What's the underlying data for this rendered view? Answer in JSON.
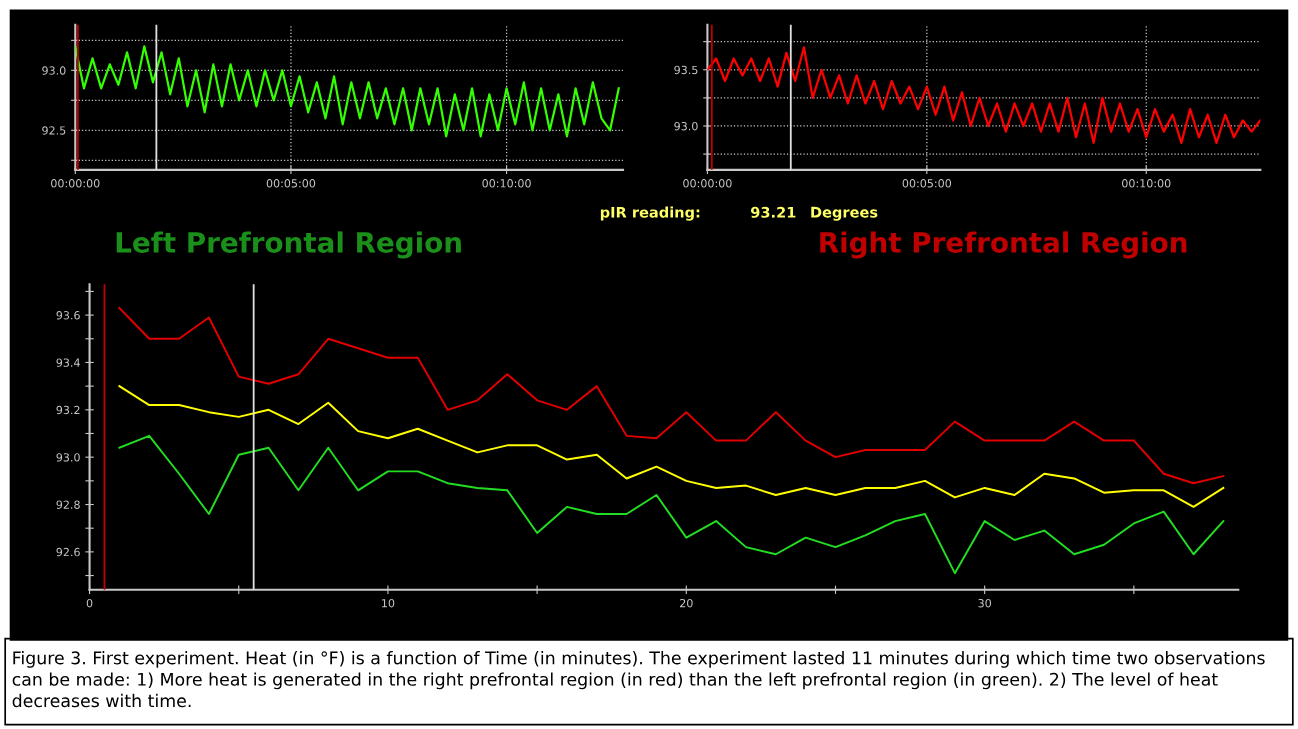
{
  "chart_data": [
    {
      "type": "line",
      "xlim": [
        0,
        12.7
      ],
      "ylim": [
        92.17,
        93.38
      ],
      "xticks": [
        {
          "value": 0,
          "label": "00:00:00"
        },
        {
          "value": 5,
          "label": "00:05:00"
        },
        {
          "value": 10,
          "label": "00:10:00"
        }
      ],
      "yticks": [
        {
          "value": 92.25,
          "label": null
        },
        {
          "value": 92.5,
          "label": "92.5"
        },
        {
          "value": 92.75,
          "label": null
        },
        {
          "value": 93.0,
          "label": "93.0"
        },
        {
          "value": 93.25,
          "label": null
        }
      ],
      "grid": true,
      "series": [
        {
          "color": "#33ff00",
          "x": [
            0,
            0.2,
            0.4,
            0.6,
            0.8,
            1.0,
            1.2,
            1.4,
            1.6,
            1.8,
            2.0,
            2.2,
            2.4,
            2.6,
            2.8,
            3.0,
            3.2,
            3.4,
            3.6,
            3.8,
            4.0,
            4.2,
            4.4,
            4.6,
            4.8,
            5.0,
            5.2,
            5.4,
            5.6,
            5.8,
            6.0,
            6.2,
            6.4,
            6.6,
            6.8,
            7.0,
            7.2,
            7.4,
            7.6,
            7.8,
            8.0,
            8.2,
            8.4,
            8.6,
            8.8,
            9.0,
            9.2,
            9.4,
            9.6,
            9.8,
            10.0,
            10.2,
            10.4,
            10.6,
            10.8,
            11.0,
            11.2,
            11.4,
            11.6,
            11.8,
            12.0,
            12.2,
            12.4,
            12.6
          ],
          "values": [
            93.2,
            92.85,
            93.1,
            92.85,
            93.05,
            92.88,
            93.15,
            92.85,
            93.2,
            92.9,
            93.15,
            92.8,
            93.1,
            92.7,
            93.0,
            92.65,
            93.05,
            92.7,
            93.05,
            92.75,
            93.0,
            92.7,
            93.0,
            92.75,
            93.0,
            92.7,
            92.95,
            92.65,
            92.9,
            92.6,
            92.95,
            92.55,
            92.9,
            92.6,
            92.9,
            92.6,
            92.85,
            92.55,
            92.85,
            92.5,
            92.85,
            92.55,
            92.85,
            92.45,
            92.8,
            92.5,
            92.85,
            92.45,
            92.8,
            92.5,
            92.85,
            92.55,
            92.9,
            92.5,
            92.85,
            92.5,
            92.8,
            92.45,
            92.85,
            92.55,
            92.9,
            92.6,
            92.5,
            92.85
          ]
        }
      ],
      "ref_lines": [
        {
          "axis": "x",
          "value": 0.06,
          "color": "#c00000"
        },
        {
          "axis": "x",
          "value": 1.88,
          "color": "#e0e0e0"
        }
      ]
    },
    {
      "type": "line",
      "xlim": [
        0,
        12.6
      ],
      "ylim": [
        92.61,
        93.9
      ],
      "xticks": [
        {
          "value": 0,
          "label": "00:00:00"
        },
        {
          "value": 5,
          "label": "00:05:00"
        },
        {
          "value": 10,
          "label": "00:10:00"
        }
      ],
      "yticks": [
        {
          "value": 92.75,
          "label": null
        },
        {
          "value": 93.0,
          "label": "93.0"
        },
        {
          "value": 93.25,
          "label": null
        },
        {
          "value": 93.5,
          "label": "93.5"
        },
        {
          "value": 93.75,
          "label": null
        }
      ],
      "grid": true,
      "series": [
        {
          "color": "#ff0000",
          "x": [
            0,
            0.2,
            0.4,
            0.6,
            0.8,
            1.0,
            1.2,
            1.4,
            1.6,
            1.8,
            2.0,
            2.2,
            2.4,
            2.6,
            2.8,
            3.0,
            3.2,
            3.4,
            3.6,
            3.8,
            4.0,
            4.2,
            4.4,
            4.6,
            4.8,
            5.0,
            5.2,
            5.4,
            5.6,
            5.8,
            6.0,
            6.2,
            6.4,
            6.6,
            6.8,
            7.0,
            7.2,
            7.4,
            7.6,
            7.8,
            8.0,
            8.2,
            8.4,
            8.6,
            8.8,
            9.0,
            9.2,
            9.4,
            9.6,
            9.8,
            10.0,
            10.2,
            10.4,
            10.6,
            10.8,
            11.0,
            11.2,
            11.4,
            11.6,
            11.8,
            12.0,
            12.2,
            12.4,
            12.6
          ],
          "values": [
            93.5,
            93.6,
            93.4,
            93.6,
            93.45,
            93.6,
            93.4,
            93.6,
            93.35,
            93.65,
            93.4,
            93.7,
            93.25,
            93.5,
            93.25,
            93.45,
            93.2,
            93.45,
            93.2,
            93.4,
            93.15,
            93.4,
            93.2,
            93.35,
            93.15,
            93.35,
            93.1,
            93.35,
            93.05,
            93.3,
            93.0,
            93.25,
            93.0,
            93.2,
            92.95,
            93.2,
            93.0,
            93.2,
            92.95,
            93.2,
            92.95,
            93.25,
            92.9,
            93.2,
            92.85,
            93.25,
            92.95,
            93.2,
            92.95,
            93.15,
            92.9,
            93.15,
            92.95,
            93.1,
            92.85,
            93.15,
            92.9,
            93.1,
            92.85,
            93.1,
            92.9,
            93.05,
            92.95,
            93.05
          ]
        }
      ],
      "ref_lines": [
        {
          "axis": "x",
          "value": 0.1,
          "color": "#c00000"
        },
        {
          "axis": "x",
          "value": 1.9,
          "color": "#e0e0e0"
        }
      ]
    },
    {
      "type": "line",
      "xlim": [
        0,
        38.5
      ],
      "ylim": [
        92.44,
        93.73
      ],
      "xticks": [
        0,
        {
          "value": 5,
          "label": null
        },
        10,
        {
          "value": 15,
          "label": null
        },
        20,
        {
          "value": 25,
          "label": null
        },
        30,
        {
          "value": 35,
          "label": null
        }
      ],
      "yticks": [
        {
          "value": 92.5,
          "label": null
        },
        92.6,
        {
          "value": 92.7,
          "label": null
        },
        92.8,
        {
          "value": 92.9,
          "label": null
        },
        {
          "value": 93.0,
          "label": "93.0"
        },
        {
          "value": 93.1,
          "label": null
        },
        93.2,
        {
          "value": 93.3,
          "label": null
        },
        93.4,
        {
          "value": 93.5,
          "label": null
        },
        93.6,
        {
          "value": 93.7,
          "label": null
        }
      ],
      "x": [
        1,
        2,
        3,
        4,
        5,
        6,
        7,
        8,
        9,
        10,
        11,
        12,
        13,
        14,
        15,
        16,
        17,
        18,
        19,
        20,
        21,
        22,
        23,
        24,
        25,
        26,
        27,
        28,
        29,
        30,
        31,
        32,
        33,
        34,
        35,
        36,
        37,
        38
      ],
      "series": [
        {
          "color": "#e00000",
          "values": [
            93.63,
            93.5,
            93.5,
            93.59,
            93.34,
            93.31,
            93.35,
            93.5,
            93.46,
            93.42,
            93.42,
            93.2,
            93.24,
            93.35,
            93.24,
            93.2,
            93.3,
            93.09,
            93.08,
            93.19,
            93.07,
            93.07,
            93.19,
            93.07,
            93.0,
            93.03,
            93.03,
            93.03,
            93.15,
            93.07,
            93.07,
            93.07,
            93.15,
            93.07,
            93.07,
            92.93,
            92.89,
            92.92
          ]
        },
        {
          "color": "#ffff00",
          "values": [
            93.3,
            93.22,
            93.22,
            93.19,
            93.17,
            93.2,
            93.14,
            93.23,
            93.11,
            93.08,
            93.12,
            93.07,
            93.02,
            93.05,
            93.05,
            92.99,
            93.01,
            92.91,
            92.96,
            92.9,
            92.87,
            92.88,
            92.84,
            92.87,
            92.84,
            92.87,
            92.87,
            92.9,
            92.83,
            92.87,
            92.84,
            92.93,
            92.91,
            92.85,
            92.86,
            92.86,
            92.79,
            92.87
          ]
        },
        {
          "color": "#22dd22",
          "values": [
            93.04,
            93.09,
            92.93,
            92.76,
            93.01,
            93.04,
            92.86,
            93.04,
            92.86,
            92.94,
            92.94,
            92.89,
            92.87,
            92.86,
            92.68,
            92.79,
            92.76,
            92.76,
            92.84,
            92.66,
            92.73,
            92.62,
            92.59,
            92.66,
            92.62,
            92.67,
            92.73,
            92.76,
            92.51,
            92.73,
            92.65,
            92.69,
            92.59,
            92.63,
            92.72,
            92.77,
            92.59,
            92.73
          ]
        }
      ],
      "ref_lines": [
        {
          "axis": "x",
          "value": 0.5,
          "color": "#c00000"
        },
        {
          "axis": "x",
          "value": 5.5,
          "color": "#e0e0e0"
        }
      ],
      "annotations": [
        "pIR reading:",
        "93.21",
        "Degrees",
        "Left Prefrontal Region",
        "Right Prefrontal Region",
        "Figure 3. First experiment. Heat (in °F) is a function of Time (in minutes). The experiment lasted 11 minutes during which time two observations can be made: 1) More heat is generated in the right prefrontal region (in red) than the left prefrontal region (in green). 2) The level of heat decreases with time."
      ]
    }
  ]
}
